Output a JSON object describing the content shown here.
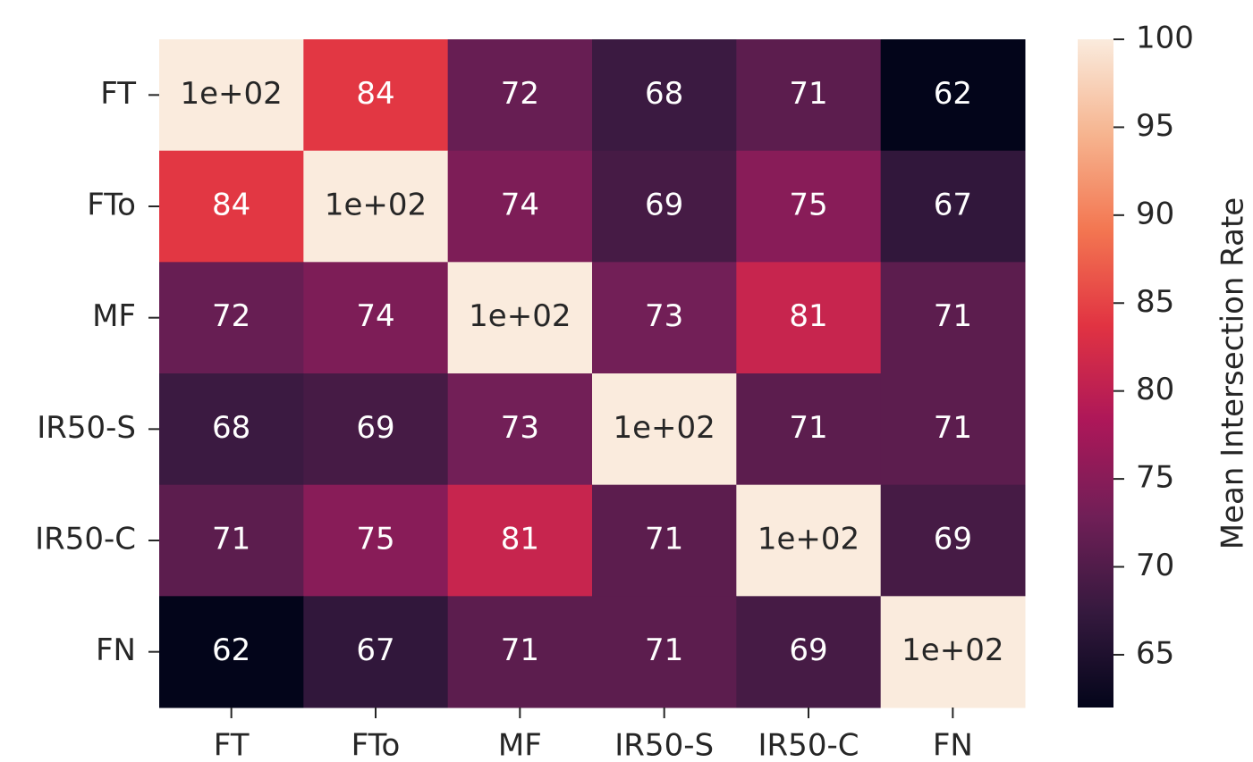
{
  "chart_data": {
    "type": "heatmap",
    "x_categories": [
      "FT",
      "FTo",
      "MF",
      "IR50-S",
      "IR50-C",
      "FN"
    ],
    "y_categories": [
      "FT",
      "FTo",
      "MF",
      "IR50-S",
      "IR50-C",
      "FN"
    ],
    "z": [
      [
        100,
        84,
        72,
        68,
        71,
        62
      ],
      [
        84,
        100,
        74,
        69,
        75,
        67
      ],
      [
        72,
        74,
        100,
        73,
        81,
        71
      ],
      [
        68,
        69,
        73,
        100,
        71,
        71
      ],
      [
        71,
        75,
        81,
        71,
        100,
        69
      ],
      [
        62,
        67,
        71,
        71,
        69,
        100
      ]
    ],
    "value_labels": [
      [
        "1e+02",
        "84",
        "72",
        "68",
        "71",
        "62"
      ],
      [
        "84",
        "1e+02",
        "74",
        "69",
        "75",
        "67"
      ],
      [
        "72",
        "74",
        "1e+02",
        "73",
        "81",
        "71"
      ],
      [
        "68",
        "69",
        "73",
        "1e+02",
        "71",
        "71"
      ],
      [
        "71",
        "75",
        "81",
        "71",
        "1e+02",
        "69"
      ],
      [
        "62",
        "67",
        "71",
        "71",
        "69",
        "1e+02"
      ]
    ],
    "colorscale": [
      "#03051A",
      "#35193E",
      "#701F57",
      "#AD1759",
      "#E13342",
      "#F37651",
      "#F6B48F",
      "#FAEBDD"
    ],
    "zlim": [
      62,
      100
    ],
    "zticks": [
      65,
      70,
      75,
      80,
      85,
      90,
      95,
      100
    ],
    "colorbar_label": "Mean Intersection Rate"
  }
}
